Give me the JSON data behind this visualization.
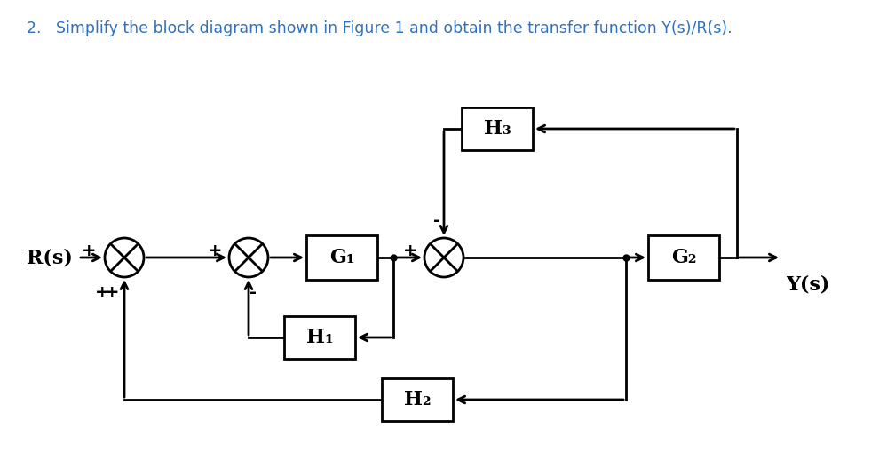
{
  "title_text": "2.   Simplify the block diagram shown in Figure 1 and obtain the transfer function Y(s)/R(s).",
  "title_color": "#3070c0",
  "title_fontsize": 12.5,
  "bg_color": "#ffffff",
  "line_color": "#000000",
  "line_width": 2.0,
  "G1_label": "G₁",
  "G2_label": "G₂",
  "H1_label": "H₁",
  "H2_label": "H₂",
  "H3_label": "H₃",
  "Rs_label": "R(s)",
  "Ys_label": "Y(s)"
}
